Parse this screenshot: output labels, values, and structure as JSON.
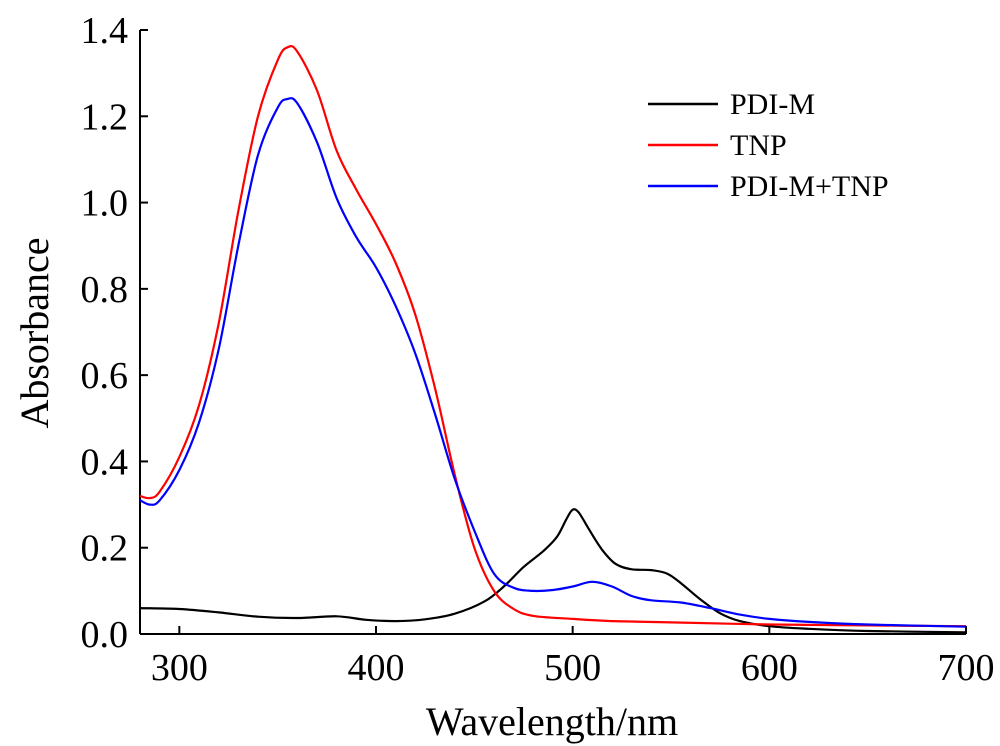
{
  "chart_data": {
    "type": "line",
    "title": "",
    "xlabel": "Wavelength/nm",
    "ylabel": "Absorbance",
    "xlim": [
      280,
      700
    ],
    "ylim": [
      0,
      1.4
    ],
    "x_ticks": [
      300,
      400,
      500,
      600,
      700
    ],
    "y_ticks": [
      0.0,
      0.2,
      0.4,
      0.6,
      0.8,
      1.0,
      1.2,
      1.4
    ],
    "x_tick_labels": [
      "300",
      "400",
      "500",
      "600",
      "700"
    ],
    "y_tick_labels": [
      "0.0",
      "0.2",
      "0.4",
      "0.6",
      "0.8",
      "1.0",
      "1.2",
      "1.4"
    ],
    "grid": false,
    "legend_position": "top-right",
    "series": [
      {
        "name": "PDI-M",
        "color": "#000000",
        "points": [
          [
            280,
            0.06
          ],
          [
            300,
            0.058
          ],
          [
            320,
            0.05
          ],
          [
            340,
            0.04
          ],
          [
            360,
            0.037
          ],
          [
            380,
            0.041
          ],
          [
            395,
            0.033
          ],
          [
            410,
            0.03
          ],
          [
            425,
            0.034
          ],
          [
            440,
            0.047
          ],
          [
            455,
            0.075
          ],
          [
            465,
            0.11
          ],
          [
            475,
            0.155
          ],
          [
            485,
            0.192
          ],
          [
            492,
            0.225
          ],
          [
            497,
            0.268
          ],
          [
            500,
            0.288
          ],
          [
            503,
            0.282
          ],
          [
            508,
            0.245
          ],
          [
            515,
            0.195
          ],
          [
            522,
            0.162
          ],
          [
            530,
            0.15
          ],
          [
            540,
            0.148
          ],
          [
            548,
            0.14
          ],
          [
            555,
            0.118
          ],
          [
            565,
            0.08
          ],
          [
            575,
            0.048
          ],
          [
            585,
            0.03
          ],
          [
            600,
            0.018
          ],
          [
            620,
            0.012
          ],
          [
            650,
            0.007
          ],
          [
            700,
            0.004
          ]
        ]
      },
      {
        "name": "TNP",
        "color": "#ff0000",
        "points": [
          [
            280,
            0.32
          ],
          [
            285,
            0.315
          ],
          [
            290,
            0.33
          ],
          [
            300,
            0.41
          ],
          [
            310,
            0.53
          ],
          [
            320,
            0.72
          ],
          [
            330,
            0.98
          ],
          [
            340,
            1.2
          ],
          [
            350,
            1.33
          ],
          [
            355,
            1.36
          ],
          [
            360,
            1.35
          ],
          [
            370,
            1.26
          ],
          [
            380,
            1.12
          ],
          [
            390,
            1.03
          ],
          [
            400,
            0.95
          ],
          [
            410,
            0.86
          ],
          [
            420,
            0.74
          ],
          [
            430,
            0.57
          ],
          [
            440,
            0.37
          ],
          [
            450,
            0.2
          ],
          [
            460,
            0.1
          ],
          [
            470,
            0.058
          ],
          [
            480,
            0.042
          ],
          [
            500,
            0.035
          ],
          [
            520,
            0.03
          ],
          [
            550,
            0.027
          ],
          [
            600,
            0.022
          ],
          [
            650,
            0.02
          ],
          [
            700,
            0.018
          ]
        ]
      },
      {
        "name": "PDI-M+TNP",
        "color": "#0000ff",
        "points": [
          [
            280,
            0.31
          ],
          [
            285,
            0.3
          ],
          [
            290,
            0.31
          ],
          [
            300,
            0.38
          ],
          [
            310,
            0.49
          ],
          [
            320,
            0.66
          ],
          [
            330,
            0.9
          ],
          [
            340,
            1.11
          ],
          [
            350,
            1.22
          ],
          [
            355,
            1.24
          ],
          [
            360,
            1.23
          ],
          [
            370,
            1.14
          ],
          [
            380,
            1.01
          ],
          [
            390,
            0.92
          ],
          [
            400,
            0.85
          ],
          [
            410,
            0.76
          ],
          [
            420,
            0.65
          ],
          [
            430,
            0.51
          ],
          [
            440,
            0.36
          ],
          [
            450,
            0.24
          ],
          [
            460,
            0.14
          ],
          [
            470,
            0.107
          ],
          [
            480,
            0.1
          ],
          [
            490,
            0.102
          ],
          [
            500,
            0.11
          ],
          [
            510,
            0.121
          ],
          [
            520,
            0.11
          ],
          [
            530,
            0.088
          ],
          [
            540,
            0.078
          ],
          [
            555,
            0.073
          ],
          [
            570,
            0.06
          ],
          [
            585,
            0.045
          ],
          [
            600,
            0.035
          ],
          [
            620,
            0.028
          ],
          [
            650,
            0.022
          ],
          [
            700,
            0.017
          ]
        ]
      }
    ]
  }
}
